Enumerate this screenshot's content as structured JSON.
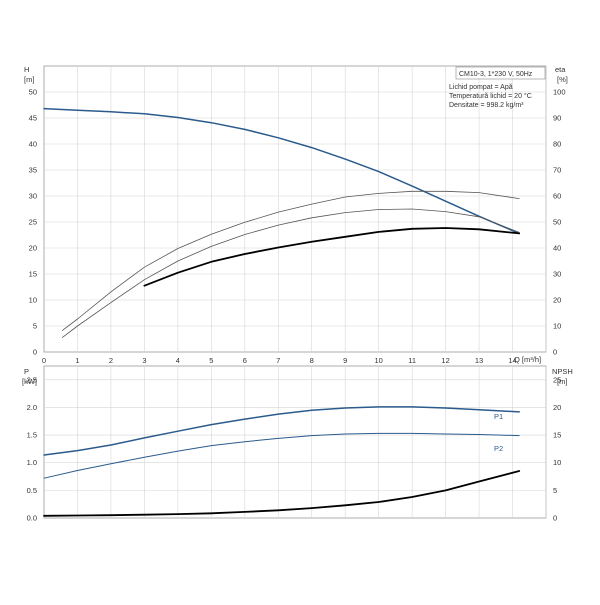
{
  "chart_data": [
    {
      "type": "line",
      "title": "CM10-3, 1*230 V, 50Hz",
      "info": [
        "Lichid pompat = Apă",
        "Temperatură lichid = 20 °C",
        "Densitate = 998.2 kg/m³"
      ],
      "xlabel": "Q [m³/h]",
      "ylabel_left_top": "H",
      "ylabel_left_bottom": "[m]",
      "ylabel_right_top": "eta",
      "ylabel_right_bottom": "[%]",
      "xlim": [
        0,
        15
      ],
      "ylim_left": [
        0,
        55
      ],
      "ylim_right": [
        0,
        110
      ],
      "x_ticks": [
        "0",
        "1",
        "2",
        "3",
        "4",
        "5",
        "6",
        "7",
        "8",
        "9",
        "10",
        "11",
        "12",
        "13",
        "14"
      ],
      "y_left_ticks": [
        "0",
        "5",
        "10",
        "15",
        "20",
        "25",
        "30",
        "35",
        "40",
        "45",
        "50"
      ],
      "y_right_ticks": [
        "0",
        "10",
        "20",
        "30",
        "40",
        "50",
        "60",
        "70",
        "80",
        "90",
        "100"
      ],
      "series": [
        {
          "axis": "left",
          "color": "#2a5b8c",
          "width": 1.5,
          "x": [
            0,
            1,
            2,
            3,
            4,
            5,
            6,
            7,
            8,
            9,
            10,
            11,
            12,
            13,
            14.2
          ],
          "y": [
            46.8,
            46.5,
            46.2,
            45.8,
            45.1,
            44.1,
            42.8,
            41.2,
            39.3,
            37.1,
            34.7,
            31.9,
            29.0,
            26.1,
            22.8
          ]
        },
        {
          "axis": "right",
          "color": "#000000",
          "width": 1.8,
          "x": [
            3,
            4,
            5,
            6,
            7,
            8,
            9,
            10,
            11,
            12,
            13,
            14.2
          ],
          "y": [
            25.5,
            30.5,
            34.7,
            37.7,
            40.2,
            42.4,
            44.3,
            46.2,
            47.4,
            47.7,
            47.2,
            45.6
          ]
        },
        {
          "axis": "right",
          "color": "#555555",
          "width": 0.8,
          "x": [
            0.55,
            1,
            2,
            3,
            4,
            5,
            6,
            7,
            8,
            9,
            10,
            11,
            12,
            13,
            14.2
          ],
          "y": [
            8.3,
            12.7,
            23.1,
            32.6,
            39.8,
            45.3,
            49.9,
            53.8,
            56.9,
            59.6,
            61.0,
            61.8,
            61.8,
            61.3,
            59.0
          ]
        },
        {
          "axis": "left",
          "color": "#555555",
          "width": 0.8,
          "x": [
            0.55,
            1,
            2,
            3,
            4,
            5,
            6,
            7,
            8,
            9,
            10,
            11,
            12,
            13,
            14.2
          ],
          "y": [
            2.8,
            5.0,
            9.5,
            13.9,
            17.5,
            20.3,
            22.6,
            24.4,
            25.8,
            26.8,
            27.4,
            27.5,
            27.0,
            26.0,
            23.0
          ]
        }
      ]
    },
    {
      "type": "line",
      "xlim": [
        0,
        15
      ],
      "ylabel_left_top": "P",
      "ylabel_left_bottom": "[kW]",
      "ylabel_right_top": "NPSH",
      "ylabel_right_bottom": "[m]",
      "ylim_left": [
        0,
        2.75
      ],
      "ylim_right": [
        0,
        27.5
      ],
      "y_left_ticks": [
        "0.0",
        "0.5",
        "1.0",
        "1.5",
        "2.0",
        "2.5"
      ],
      "y_right_ticks": [
        "0",
        "5",
        "10",
        "15",
        "20",
        "25"
      ],
      "series": [
        {
          "name": "P1",
          "axis": "left",
          "color": "#2a5b8c",
          "width": 1.5,
          "x": [
            0,
            1,
            2,
            3,
            4,
            5,
            6,
            7,
            8,
            9,
            10,
            11,
            12,
            13,
            14.2
          ],
          "y": [
            1.14,
            1.22,
            1.32,
            1.45,
            1.57,
            1.69,
            1.79,
            1.88,
            1.95,
            1.99,
            2.01,
            2.01,
            1.99,
            1.96,
            1.92
          ]
        },
        {
          "name": "P2",
          "axis": "left",
          "color": "#2a5b8c",
          "width": 1.0,
          "x": [
            0,
            1,
            2,
            3,
            4,
            5,
            6,
            7,
            8,
            9,
            10,
            11,
            12,
            13,
            14.2
          ],
          "y": [
            0.72,
            0.86,
            0.98,
            1.1,
            1.21,
            1.31,
            1.38,
            1.44,
            1.49,
            1.52,
            1.53,
            1.53,
            1.52,
            1.51,
            1.49
          ]
        },
        {
          "axis": "right",
          "color": "#000000",
          "width": 1.8,
          "x": [
            0,
            1,
            2,
            3,
            4,
            5,
            6,
            7,
            8,
            9,
            10,
            11,
            12,
            13,
            14.2
          ],
          "y": [
            0.4,
            0.45,
            0.5,
            0.6,
            0.7,
            0.85,
            1.1,
            1.4,
            1.8,
            2.3,
            2.9,
            3.8,
            5.0,
            6.6,
            8.5
          ]
        }
      ]
    }
  ]
}
